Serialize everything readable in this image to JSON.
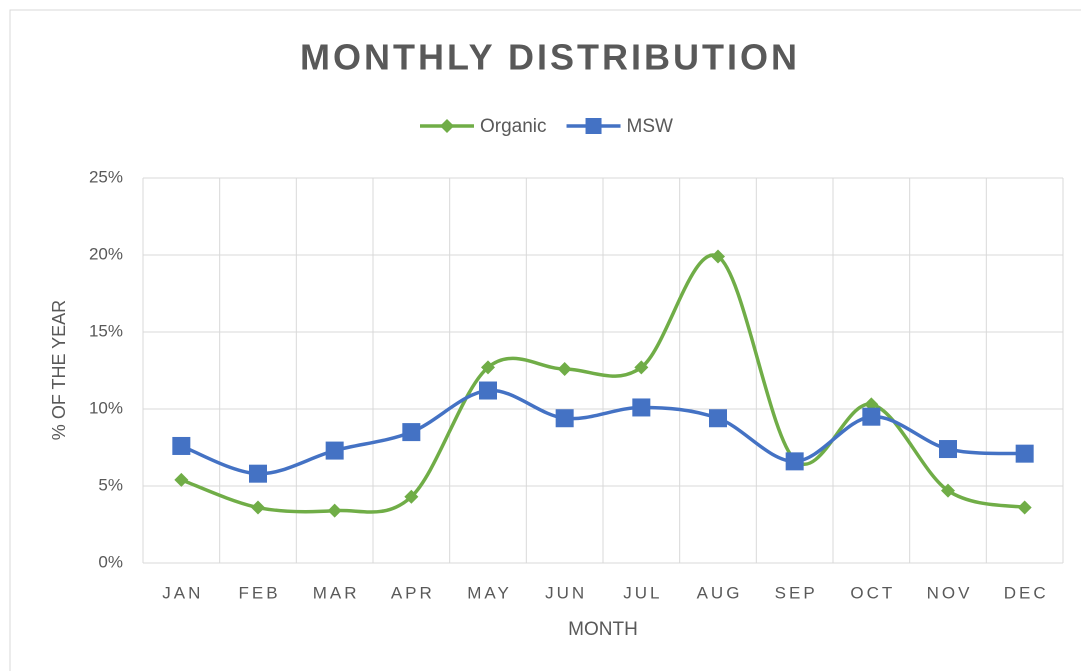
{
  "chart_data": {
    "type": "line",
    "title": "MONTHLY  DISTRIBUTION",
    "x_label": "MONTH",
    "y_label": "% OF THE YEAR",
    "categories": [
      "JAN",
      "FEB",
      "MAR",
      "APR",
      "MAY",
      "JUN",
      "JUL",
      "AUG",
      "SEP",
      "OCT",
      "NOV",
      "DEC"
    ],
    "series": [
      {
        "name": "Organic",
        "color": "#70ad47",
        "marker": "diamond",
        "values": [
          5.4,
          3.6,
          3.4,
          4.3,
          12.7,
          12.6,
          12.7,
          19.9,
          6.7,
          10.3,
          4.7,
          3.6
        ]
      },
      {
        "name": "MSW",
        "color": "#4472c4",
        "marker": "square",
        "values": [
          7.6,
          5.8,
          7.3,
          8.5,
          11.2,
          9.4,
          10.1,
          9.4,
          6.6,
          9.5,
          7.4,
          7.1
        ]
      }
    ],
    "ylim": [
      0,
      25
    ],
    "yticks": [
      {
        "value": 0,
        "label": "0%"
      },
      {
        "value": 5,
        "label": "5%"
      },
      {
        "value": 10,
        "label": "10%"
      },
      {
        "value": 15,
        "label": "15%"
      },
      {
        "value": 20,
        "label": "20%"
      },
      {
        "value": 25,
        "label": "25%"
      }
    ],
    "grid": true,
    "smooth": true,
    "legend": "top"
  }
}
